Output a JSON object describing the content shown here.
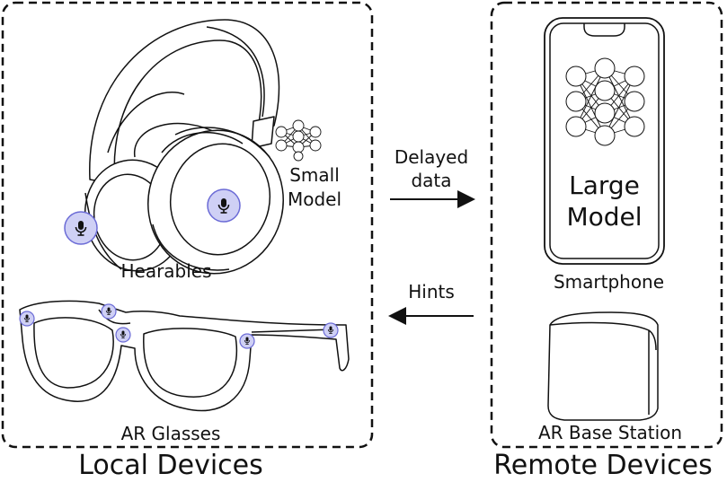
{
  "local": {
    "title": "Local Devices",
    "hearables_label": "Hearables",
    "glasses_label": "AR Glasses",
    "small_model_line1": "Small",
    "small_model_line2": "Model"
  },
  "remote": {
    "title": "Remote Devices",
    "smartphone_label": "Smartphone",
    "base_label": "AR Base Station",
    "large_model_line1": "Large",
    "large_model_line2": "Model"
  },
  "arrows": {
    "delayed_line1": "Delayed",
    "delayed_line2": "data",
    "hints": "Hints"
  },
  "colors": {
    "mic_fill": "#cfd0f5",
    "mic_stroke": "#6b6bd6",
    "stroke": "#111111"
  }
}
